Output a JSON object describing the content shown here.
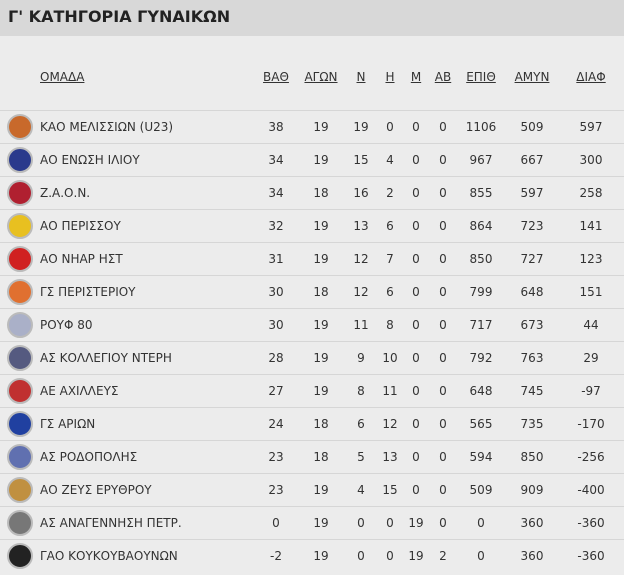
{
  "title": "Γ' ΚΑΤΗΓΟΡΙΑ ΓΥΝΑΙΚΩΝ",
  "headers": {
    "team": "ΟΜΑΔΑ",
    "pts": "ΒΑΘ",
    "gp": "ΑΓΩΝ",
    "w": "Ν",
    "l": "Η",
    "m": "Μ",
    "ab": "ΑΒ",
    "pf": "ΕΠΙΘ",
    "pa": "ΑΜΥΝ",
    "diff": "ΔΙΑΦ"
  },
  "rows": [
    {
      "team": "ΚΑΟ ΜΕΛΙΣΣΙΩΝ (U23)",
      "pts": "38",
      "gp": "19",
      "w": "19",
      "l": "0",
      "m": "0",
      "ab": "0",
      "pf": "1106",
      "pa": "509",
      "diff": "597",
      "color": "#c8692b"
    },
    {
      "team": "ΑΟ ΕΝΩΣΗ ΙΛΙΟΥ",
      "pts": "34",
      "gp": "19",
      "w": "15",
      "l": "4",
      "m": "0",
      "ab": "0",
      "pf": "967",
      "pa": "667",
      "diff": "300",
      "color": "#2a3a8c"
    },
    {
      "team": "Ζ.Α.Ο.Ν.",
      "pts": "34",
      "gp": "18",
      "w": "16",
      "l": "2",
      "m": "0",
      "ab": "0",
      "pf": "855",
      "pa": "597",
      "diff": "258",
      "color": "#b02030"
    },
    {
      "team": "ΑΟ ΠΕΡΙΣΣΟΥ",
      "pts": "32",
      "gp": "19",
      "w": "13",
      "l": "6",
      "m": "0",
      "ab": "0",
      "pf": "864",
      "pa": "723",
      "diff": "141",
      "color": "#e8c020"
    },
    {
      "team": "ΑΟ ΝΗΑΡ ΗΣΤ",
      "pts": "31",
      "gp": "19",
      "w": "12",
      "l": "7",
      "m": "0",
      "ab": "0",
      "pf": "850",
      "pa": "727",
      "diff": "123",
      "color": "#d02020"
    },
    {
      "team": "ΓΣ ΠΕΡΙΣΤΕΡΙΟΥ",
      "pts": "30",
      "gp": "18",
      "w": "12",
      "l": "6",
      "m": "0",
      "ab": "0",
      "pf": "799",
      "pa": "648",
      "diff": "151",
      "color": "#e07030"
    },
    {
      "team": "ΡΟΥΦ 80",
      "pts": "30",
      "gp": "19",
      "w": "11",
      "l": "8",
      "m": "0",
      "ab": "0",
      "pf": "717",
      "pa": "673",
      "diff": "44",
      "color": "#aab0c8"
    },
    {
      "team": "ΑΣ ΚΟΛΛΕΓΙΟΥ ΝΤΕΡΗ",
      "pts": "28",
      "gp": "19",
      "w": "9",
      "l": "10",
      "m": "0",
      "ab": "0",
      "pf": "792",
      "pa": "763",
      "diff": "29",
      "color": "#555a80"
    },
    {
      "team": "ΑΕ ΑΧΙΛΛΕΥΣ",
      "pts": "27",
      "gp": "19",
      "w": "8",
      "l": "11",
      "m": "0",
      "ab": "0",
      "pf": "648",
      "pa": "745",
      "diff": "-97",
      "color": "#c03030"
    },
    {
      "team": "ΓΣ ΑΡΙΩΝ",
      "pts": "24",
      "gp": "18",
      "w": "6",
      "l": "12",
      "m": "0",
      "ab": "0",
      "pf": "565",
      "pa": "735",
      "diff": "-170",
      "color": "#2040a0"
    },
    {
      "team": "ΑΣ ΡΟΔΟΠΟΛΗΣ",
      "pts": "23",
      "gp": "18",
      "w": "5",
      "l": "13",
      "m": "0",
      "ab": "0",
      "pf": "594",
      "pa": "850",
      "diff": "-256",
      "color": "#6070b0"
    },
    {
      "team": "ΑΟ ΖΕΥΣ ΕΡΥΘΡΟΥ",
      "pts": "23",
      "gp": "19",
      "w": "4",
      "l": "15",
      "m": "0",
      "ab": "0",
      "pf": "509",
      "pa": "909",
      "diff": "-400",
      "color": "#c09040"
    },
    {
      "team": "ΑΣ ΑΝΑΓΕΝΝΗΣΗ ΠΕΤΡ.",
      "pts": "0",
      "gp": "19",
      "w": "0",
      "l": "0",
      "m": "19",
      "ab": "0",
      "pf": "0",
      "pa": "360",
      "diff": "-360",
      "color": "#777777"
    },
    {
      "team": "ΓΑΟ ΚΟΥΚΟΥΒΑΟΥΝΩΝ",
      "pts": "-2",
      "gp": "19",
      "w": "0",
      "l": "0",
      "m": "19",
      "ab": "2",
      "pf": "0",
      "pa": "360",
      "diff": "-360",
      "color": "#222222"
    }
  ]
}
